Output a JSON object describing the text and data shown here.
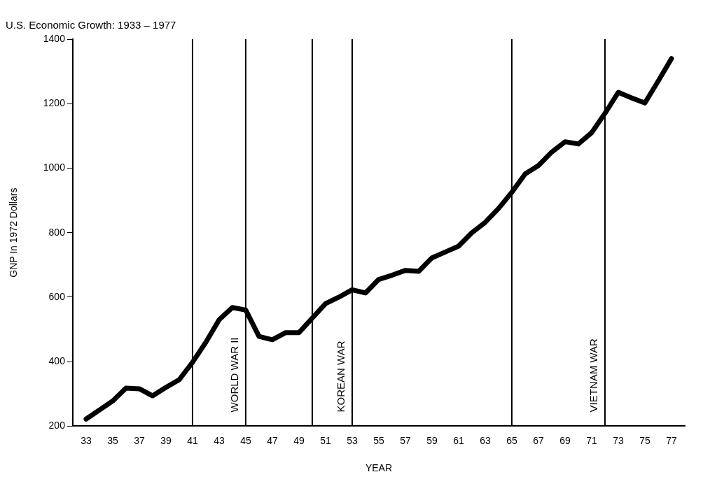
{
  "chart_data": {
    "type": "line",
    "title": "U.S. Economic Growth: 1933 – 1977",
    "xlabel": "YEAR",
    "ylabel": "GNP In 1972 Dollars",
    "x": [
      33,
      34,
      35,
      36,
      37,
      38,
      39,
      40,
      41,
      42,
      43,
      44,
      45,
      46,
      47,
      48,
      49,
      50,
      51,
      52,
      53,
      54,
      55,
      56,
      57,
      58,
      59,
      60,
      61,
      62,
      63,
      64,
      65,
      66,
      67,
      68,
      69,
      70,
      71,
      72,
      73,
      74,
      75,
      76,
      77
    ],
    "series": [
      {
        "color": "#000000",
        "values": [
          222,
          250,
          278,
          318,
          316,
          294,
          320,
          344,
          398,
          460,
          530,
          568,
          560,
          478,
          468,
          490,
          490,
          535,
          580,
          600,
          623,
          613,
          655,
          668,
          683,
          680,
          722,
          740,
          758,
          800,
          832,
          875,
          925,
          982,
          1008,
          1050,
          1082,
          1075,
          1110,
          1170,
          1235,
          1218,
          1202,
          1270,
          1340
        ]
      }
    ],
    "xlim": [
      32,
      78
    ],
    "xticks": [
      33,
      35,
      37,
      39,
      41,
      43,
      45,
      47,
      49,
      51,
      53,
      55,
      57,
      59,
      61,
      63,
      65,
      67,
      69,
      71,
      73,
      75,
      77
    ],
    "ylim": [
      200,
      1400
    ],
    "yticks": [
      200,
      400,
      600,
      800,
      1000,
      1200,
      1400
    ],
    "ref_lines": [
      {
        "axis": "x",
        "value": 41,
        "color": "#000000"
      },
      {
        "axis": "x",
        "value": 45,
        "label": "WORLD WAR II",
        "color": "#000000"
      },
      {
        "axis": "x",
        "value": 50,
        "color": "#000000"
      },
      {
        "axis": "x",
        "value": 53,
        "label": "KOREAN WAR",
        "color": "#000000"
      },
      {
        "axis": "x",
        "value": 65,
        "color": "#000000"
      },
      {
        "axis": "x",
        "value": 72,
        "label": "VIETNAM WAR",
        "color": "#000000"
      }
    ],
    "grid": false,
    "legend": false,
    "marker": "none",
    "line_style": "solid"
  }
}
